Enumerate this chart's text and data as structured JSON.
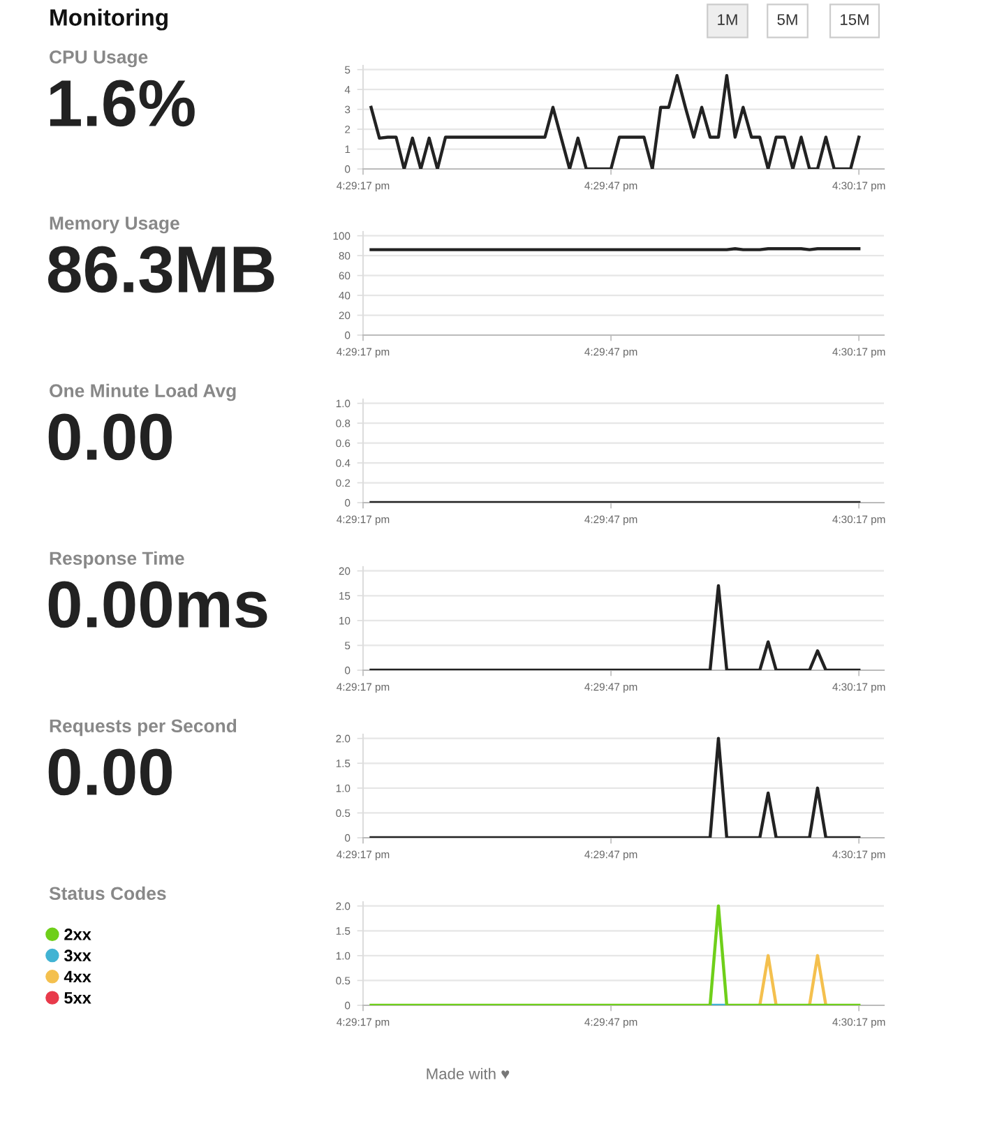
{
  "chart_data": [
    {
      "type": "other",
      "title": "Monitoring",
      "annotations": [
        "1M",
        "5M",
        "15M"
      ]
    },
    {
      "type": "other",
      "title": "CPU Usage",
      "subtitle": "1.6%"
    },
    {
      "type": "line",
      "color": "#222222",
      "grid": "y",
      "xlim": [
        16.48806,
        16.50556
      ],
      "xticks": [
        {
          "value": 16.48806,
          "label": "4:29:17 pm"
        },
        {
          "value": 16.49639,
          "label": "4:29:47 pm"
        },
        {
          "value": 16.50472,
          "label": "4:30:17 pm"
        }
      ],
      "ylim": [
        0,
        5.2
      ],
      "yticks": [
        0,
        1,
        2,
        3,
        4,
        5
      ],
      "x": [
        16.48833,
        16.48861,
        16.48889,
        16.48917,
        16.48944,
        16.48972,
        16.49,
        16.49028,
        16.49056,
        16.49083,
        16.49111,
        16.49139,
        16.49167,
        16.49194,
        16.49222,
        16.4925,
        16.49278,
        16.49306,
        16.49333,
        16.49361,
        16.49389,
        16.49417,
        16.49444,
        16.49472,
        16.495,
        16.49528,
        16.49556,
        16.49583,
        16.49611,
        16.49639,
        16.49667,
        16.49694,
        16.49722,
        16.4975,
        16.49778,
        16.49806,
        16.49833,
        16.49861,
        16.49889,
        16.49917,
        16.49944,
        16.49972,
        16.5,
        16.50028,
        16.50056,
        16.50083,
        16.50111,
        16.50139,
        16.50167,
        16.50194,
        16.50222,
        16.5025,
        16.50278,
        16.50306,
        16.50333,
        16.50361,
        16.50389,
        16.50417,
        16.50444,
        16.50472
      ],
      "values": [
        3.1,
        1.55,
        1.6,
        1.6,
        0,
        1.55,
        0,
        1.55,
        0,
        1.6,
        1.6,
        1.6,
        1.6,
        1.6,
        1.6,
        1.6,
        1.6,
        1.6,
        1.6,
        1.6,
        1.6,
        1.6,
        3.1,
        1.55,
        0,
        1.55,
        0,
        0,
        0,
        0,
        1.6,
        1.6,
        1.6,
        1.6,
        0,
        3.1,
        3.1,
        4.7,
        3.1,
        1.6,
        3.1,
        1.6,
        1.6,
        4.7,
        1.6,
        3.1,
        1.6,
        1.6,
        0,
        1.6,
        1.6,
        0,
        1.6,
        0,
        0,
        1.6,
        0,
        0,
        0,
        1.6
      ]
    },
    {
      "type": "other",
      "title": "Memory Usage",
      "subtitle": "86.3MB"
    },
    {
      "type": "line",
      "color": "#222222",
      "grid": "y",
      "xlim": [
        16.48806,
        16.50556
      ],
      "xticks": [
        {
          "value": 16.48806,
          "label": "4:29:17 pm"
        },
        {
          "value": 16.49639,
          "label": "4:29:47 pm"
        },
        {
          "value": 16.50472,
          "label": "4:30:17 pm"
        }
      ],
      "ylim": [
        0,
        104
      ],
      "yticks": [
        0,
        20,
        40,
        60,
        80,
        100
      ],
      "x": [
        16.48833,
        16.48861,
        16.48889,
        16.48917,
        16.48944,
        16.48972,
        16.49,
        16.49028,
        16.49056,
        16.49083,
        16.49111,
        16.49139,
        16.49167,
        16.49194,
        16.49222,
        16.4925,
        16.49278,
        16.49306,
        16.49333,
        16.49361,
        16.49389,
        16.49417,
        16.49444,
        16.49472,
        16.495,
        16.49528,
        16.49556,
        16.49583,
        16.49611,
        16.49639,
        16.49667,
        16.49694,
        16.49722,
        16.4975,
        16.49778,
        16.49806,
        16.49833,
        16.49861,
        16.49889,
        16.49917,
        16.49944,
        16.49972,
        16.5,
        16.50028,
        16.50056,
        16.50083,
        16.50111,
        16.50139,
        16.50167,
        16.50194,
        16.50222,
        16.5025,
        16.50278,
        16.50306,
        16.50333,
        16.50361,
        16.50389,
        16.50417,
        16.50444,
        16.50472
      ],
      "values": [
        86,
        86,
        86,
        86,
        86,
        86,
        86,
        86,
        86,
        86,
        86,
        86,
        86,
        86,
        86,
        86,
        86,
        86,
        86,
        86,
        86,
        86,
        86,
        86,
        86,
        86,
        86,
        86,
        86,
        86,
        86,
        86,
        86,
        86,
        86,
        86,
        86,
        86,
        86,
        86,
        86,
        86,
        86,
        86,
        87,
        86,
        86,
        86,
        87,
        87,
        87,
        87,
        87,
        86,
        87,
        87,
        87,
        87,
        87,
        87
      ]
    },
    {
      "type": "other",
      "title": "One Minute Load Avg",
      "subtitle": "0.00"
    },
    {
      "type": "line",
      "color": "#222222",
      "grid": "y",
      "xlim": [
        16.48806,
        16.50556
      ],
      "xticks": [
        {
          "value": 16.48806,
          "label": "4:29:17 pm"
        },
        {
          "value": 16.49639,
          "label": "4:29:47 pm"
        },
        {
          "value": 16.50472,
          "label": "4:30:17 pm"
        }
      ],
      "ylim": [
        0,
        1.04
      ],
      "yticks": [
        0,
        {
          "value": 0.2,
          "label": "0.2"
        },
        {
          "value": 0.4,
          "label": "0.4"
        },
        {
          "value": 0.6,
          "label": "0.6"
        },
        {
          "value": 0.8,
          "label": "0.8"
        },
        {
          "value": 1,
          "label": "1.0"
        }
      ],
      "x": [
        16.48833,
        16.48861,
        16.48889,
        16.48917,
        16.48944,
        16.48972,
        16.49,
        16.49028,
        16.49056,
        16.49083,
        16.49111,
        16.49139,
        16.49167,
        16.49194,
        16.49222,
        16.4925,
        16.49278,
        16.49306,
        16.49333,
        16.49361,
        16.49389,
        16.49417,
        16.49444,
        16.49472,
        16.495,
        16.49528,
        16.49556,
        16.49583,
        16.49611,
        16.49639,
        16.49667,
        16.49694,
        16.49722,
        16.4975,
        16.49778,
        16.49806,
        16.49833,
        16.49861,
        16.49889,
        16.49917,
        16.49944,
        16.49972,
        16.5,
        16.50028,
        16.50056,
        16.50083,
        16.50111,
        16.50139,
        16.50167,
        16.50194,
        16.50222,
        16.5025,
        16.50278,
        16.50306,
        16.50333,
        16.50361,
        16.50389,
        16.50417,
        16.50444,
        16.50472
      ],
      "values": [
        0,
        0,
        0,
        0,
        0,
        0,
        0,
        0,
        0,
        0,
        0,
        0,
        0,
        0,
        0,
        0,
        0,
        0,
        0,
        0,
        0,
        0,
        0,
        0,
        0,
        0,
        0,
        0,
        0,
        0,
        0,
        0,
        0,
        0,
        0,
        0,
        0,
        0,
        0,
        0,
        0,
        0,
        0,
        0,
        0,
        0,
        0,
        0,
        0,
        0,
        0,
        0,
        0,
        0,
        0,
        0,
        0,
        0,
        0,
        0
      ]
    },
    {
      "type": "other",
      "title": "Response Time",
      "subtitle": "0.00ms"
    },
    {
      "type": "line",
      "color": "#222222",
      "grid": "y",
      "xlim": [
        16.48806,
        16.50556
      ],
      "xticks": [
        {
          "value": 16.48806,
          "label": "4:29:17 pm"
        },
        {
          "value": 16.49639,
          "label": "4:29:47 pm"
        },
        {
          "value": 16.50472,
          "label": "4:30:17 pm"
        }
      ],
      "ylim": [
        0,
        20.8
      ],
      "yticks": [
        0,
        5,
        10,
        15,
        20
      ],
      "x": [
        16.48833,
        16.48861,
        16.48889,
        16.48917,
        16.48944,
        16.48972,
        16.49,
        16.49028,
        16.49056,
        16.49083,
        16.49111,
        16.49139,
        16.49167,
        16.49194,
        16.49222,
        16.4925,
        16.49278,
        16.49306,
        16.49333,
        16.49361,
        16.49389,
        16.49417,
        16.49444,
        16.49472,
        16.495,
        16.49528,
        16.49556,
        16.49583,
        16.49611,
        16.49639,
        16.49667,
        16.49694,
        16.49722,
        16.4975,
        16.49778,
        16.49806,
        16.49833,
        16.49861,
        16.49889,
        16.49917,
        16.49944,
        16.49972,
        16.5,
        16.50028,
        16.50056,
        16.50083,
        16.50111,
        16.50139,
        16.50167,
        16.50194,
        16.50222,
        16.5025,
        16.50278,
        16.50306,
        16.50333,
        16.50361,
        16.50389,
        16.50417,
        16.50444,
        16.50472
      ],
      "values": [
        0,
        0,
        0,
        0,
        0,
        0,
        0,
        0,
        0,
        0,
        0,
        0,
        0,
        0,
        0,
        0,
        0,
        0,
        0,
        0,
        0,
        0,
        0,
        0,
        0,
        0,
        0,
        0,
        0,
        0,
        0,
        0,
        0,
        0,
        0,
        0,
        0,
        0,
        0,
        0,
        0,
        0,
        17,
        0,
        0,
        0,
        0,
        0,
        5.7,
        0,
        0,
        0,
        0,
        0,
        3.9,
        0,
        0,
        0,
        0,
        0
      ]
    },
    {
      "type": "other",
      "title": "Requests per Second",
      "subtitle": "0.00"
    },
    {
      "type": "line",
      "color": "#222222",
      "grid": "y",
      "xlim": [
        16.48806,
        16.50556
      ],
      "xticks": [
        {
          "value": 16.48806,
          "label": "4:29:17 pm"
        },
        {
          "value": 16.49639,
          "label": "4:29:47 pm"
        },
        {
          "value": 16.50472,
          "label": "4:30:17 pm"
        }
      ],
      "ylim": [
        0,
        2.08
      ],
      "yticks": [
        0,
        {
          "value": 0.5,
          "label": "0.5"
        },
        {
          "value": 1,
          "label": "1.0"
        },
        {
          "value": 1.5,
          "label": "1.5"
        },
        {
          "value": 2,
          "label": "2.0"
        }
      ],
      "x": [
        16.48833,
        16.48861,
        16.48889,
        16.48917,
        16.48944,
        16.48972,
        16.49,
        16.49028,
        16.49056,
        16.49083,
        16.49111,
        16.49139,
        16.49167,
        16.49194,
        16.49222,
        16.4925,
        16.49278,
        16.49306,
        16.49333,
        16.49361,
        16.49389,
        16.49417,
        16.49444,
        16.49472,
        16.495,
        16.49528,
        16.49556,
        16.49583,
        16.49611,
        16.49639,
        16.49667,
        16.49694,
        16.49722,
        16.4975,
        16.49778,
        16.49806,
        16.49833,
        16.49861,
        16.49889,
        16.49917,
        16.49944,
        16.49972,
        16.5,
        16.50028,
        16.50056,
        16.50083,
        16.50111,
        16.50139,
        16.50167,
        16.50194,
        16.50222,
        16.5025,
        16.50278,
        16.50306,
        16.50333,
        16.50361,
        16.50389,
        16.50417,
        16.50444,
        16.50472
      ],
      "values": [
        0,
        0,
        0,
        0,
        0,
        0,
        0,
        0,
        0,
        0,
        0,
        0,
        0,
        0,
        0,
        0,
        0,
        0,
        0,
        0,
        0,
        0,
        0,
        0,
        0,
        0,
        0,
        0,
        0,
        0,
        0,
        0,
        0,
        0,
        0,
        0,
        0,
        0,
        0,
        0,
        0,
        0,
        2,
        0,
        0,
        0,
        0,
        0,
        0.9,
        0,
        0,
        0,
        0,
        0,
        1,
        0,
        0,
        0,
        0,
        0
      ]
    },
    {
      "type": "other",
      "title": "Status Codes"
    },
    {
      "type": "line",
      "legend": "left",
      "grid": "y",
      "xlim": [
        16.48806,
        16.50556
      ],
      "xticks": [
        {
          "value": 16.48806,
          "label": "4:29:17 pm"
        },
        {
          "value": 16.49639,
          "label": "4:29:47 pm"
        },
        {
          "value": 16.50472,
          "label": "4:30:17 pm"
        }
      ],
      "ylim": [
        0,
        2.08
      ],
      "yticks": [
        0,
        {
          "value": 0.5,
          "label": "0.5"
        },
        {
          "value": 1,
          "label": "1.0"
        },
        {
          "value": 1.5,
          "label": "1.5"
        },
        {
          "value": 2,
          "label": "2.0"
        }
      ],
      "annotations": [
        "Made with ♥"
      ],
      "x": [
        16.48833,
        16.48861,
        16.48889,
        16.48917,
        16.48944,
        16.48972,
        16.49,
        16.49028,
        16.49056,
        16.49083,
        16.49111,
        16.49139,
        16.49167,
        16.49194,
        16.49222,
        16.4925,
        16.49278,
        16.49306,
        16.49333,
        16.49361,
        16.49389,
        16.49417,
        16.49444,
        16.49472,
        16.495,
        16.49528,
        16.49556,
        16.49583,
        16.49611,
        16.49639,
        16.49667,
        16.49694,
        16.49722,
        16.4975,
        16.49778,
        16.49806,
        16.49833,
        16.49861,
        16.49889,
        16.49917,
        16.49944,
        16.49972,
        16.5,
        16.50028,
        16.50056,
        16.50083,
        16.50111,
        16.50139,
        16.50167,
        16.50194,
        16.50222,
        16.5025,
        16.50278,
        16.50306,
        16.50333,
        16.50361,
        16.50389,
        16.50417,
        16.50444,
        16.50472
      ],
      "series": [
        {
          "name": "2xx",
          "color": "#6fcf1a",
          "values": [
            0,
            0,
            0,
            0,
            0,
            0,
            0,
            0,
            0,
            0,
            0,
            0,
            0,
            0,
            0,
            0,
            0,
            0,
            0,
            0,
            0,
            0,
            0,
            0,
            0,
            0,
            0,
            0,
            0,
            0,
            0,
            0,
            0,
            0,
            0,
            0,
            0,
            0,
            0,
            0,
            0,
            0,
            2,
            0,
            0,
            0,
            0,
            0,
            0,
            0,
            0,
            0,
            0,
            0,
            0,
            0,
            0,
            0,
            0,
            0
          ]
        },
        {
          "name": "3xx",
          "color": "#41b3d3",
          "values": [
            null,
            null,
            null,
            null,
            null,
            null,
            null,
            null,
            null,
            null,
            null,
            null,
            null,
            null,
            null,
            null,
            null,
            null,
            null,
            null,
            null,
            null,
            null,
            null,
            null,
            null,
            null,
            null,
            null,
            null,
            null,
            null,
            null,
            null,
            null,
            null,
            null,
            null,
            null,
            null,
            null,
            0,
            0,
            0,
            null,
            null,
            null,
            null,
            null,
            null,
            null,
            null,
            null,
            null,
            null,
            null,
            null,
            null,
            null,
            null
          ]
        },
        {
          "name": "4xx",
          "color": "#f4c04e",
          "values": [
            null,
            null,
            null,
            null,
            null,
            null,
            null,
            null,
            null,
            null,
            null,
            null,
            null,
            null,
            null,
            null,
            null,
            null,
            null,
            null,
            null,
            null,
            null,
            null,
            null,
            null,
            null,
            null,
            null,
            null,
            null,
            null,
            null,
            null,
            null,
            null,
            null,
            null,
            null,
            null,
            null,
            null,
            null,
            null,
            null,
            null,
            null,
            0,
            1,
            0,
            null,
            null,
            null,
            0,
            1,
            0,
            null,
            null,
            null,
            null
          ]
        },
        {
          "name": "5xx",
          "color": "#e83a4b",
          "values": [
            null,
            null,
            null,
            null,
            null,
            null,
            null,
            null,
            null,
            null,
            null,
            null,
            null,
            null,
            null,
            null,
            null,
            null,
            null,
            null,
            null,
            null,
            null,
            null,
            null,
            null,
            null,
            null,
            null,
            null,
            null,
            null,
            null,
            null,
            null,
            null,
            null,
            null,
            null,
            null,
            null,
            null,
            null,
            null,
            null,
            null,
            null,
            null,
            null,
            null,
            null,
            null,
            null,
            null,
            null,
            null,
            null,
            null,
            null,
            null
          ]
        }
      ]
    }
  ]
}
